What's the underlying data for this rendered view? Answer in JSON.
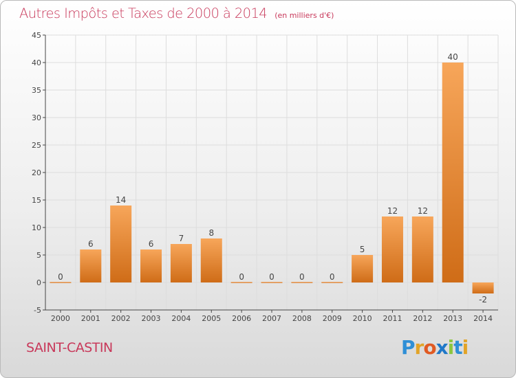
{
  "header": {
    "title": "Autres Impôts et Taxes de 2000 à 2014",
    "subtitle": "(en milliers d'€)"
  },
  "footer": {
    "commune": "SAINT-CASTIN",
    "brand_letters": [
      "P",
      "r",
      "o",
      "x",
      "i",
      "t",
      "i"
    ],
    "brand_colors": [
      "#2f8fd6",
      "#e2a428",
      "#e05a23",
      "#1f78c8",
      "#8cc63f",
      "#2f8fd6",
      "#e2a428"
    ]
  },
  "chart_data": {
    "type": "bar",
    "categories": [
      "2000",
      "2001",
      "2002",
      "2003",
      "2004",
      "2005",
      "2006",
      "2007",
      "2008",
      "2009",
      "2010",
      "2011",
      "2012",
      "2013",
      "2014"
    ],
    "values": [
      0,
      6,
      14,
      6,
      7,
      8,
      0,
      0,
      0,
      0,
      5,
      12,
      12,
      40,
      -2
    ],
    "labels": [
      "0",
      "6",
      "14",
      "6",
      "7",
      "8",
      "0",
      "0",
      "0",
      "0",
      "5",
      "12",
      "12",
      "40",
      "-2"
    ],
    "yticks": [
      -5,
      0,
      5,
      10,
      15,
      20,
      25,
      30,
      35,
      40,
      45
    ],
    "ylim": [
      -5,
      45
    ],
    "grid": true,
    "colors": {
      "bar_light": "#f7a65a",
      "bar_dark": "#cf6c17",
      "grid": "#dddddd",
      "axis": "#444444",
      "text": "#444444"
    }
  }
}
